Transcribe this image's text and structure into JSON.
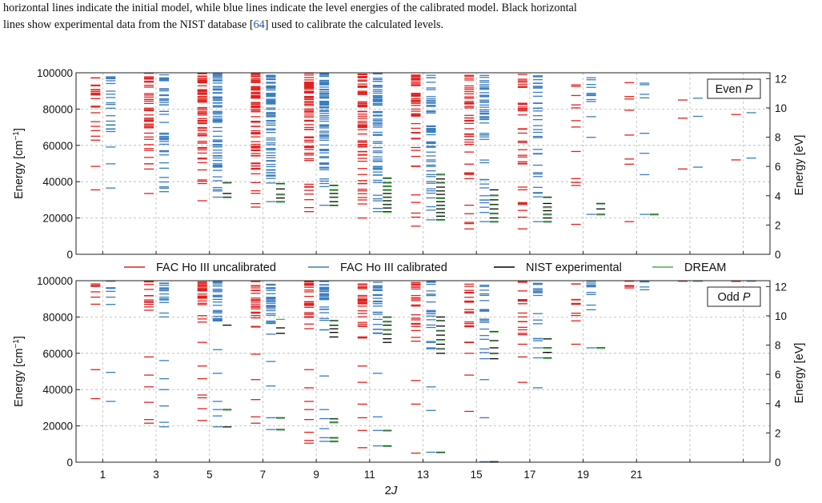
{
  "caption": {
    "line1": "horizontal lines indicate the initial model, while blue lines indicate the level energies of the calibrated model. Black horizontal",
    "line2_before_ref": "lines show experimental data from the NIST database [",
    "ref": "64",
    "line2_after_ref": "] used to calibrate the calculated levels."
  },
  "colors": {
    "uncalibrated": "#e0201f",
    "calibrated": "#3a7cc0",
    "nist": "#000000",
    "dream": "#4caf50",
    "grid": "#b8b8b8"
  },
  "legend": {
    "items": [
      {
        "label": "FAC Ho III uncalibrated",
        "color": "#e0201f"
      },
      {
        "label": "FAC Ho III calibrated",
        "color": "#3a7cc0"
      },
      {
        "label": "NIST experimental",
        "color": "#000000"
      },
      {
        "label": "DREAM",
        "color": "#4caf50"
      }
    ]
  },
  "chart_data": [
    {
      "type": "scatter",
      "panel_label": "Even P",
      "ylabel": "Energy [cm$^{-1}$]",
      "ylabel_display": "Energy [cm",
      "ylabel_sup": "−1",
      "ylabel_close": "]",
      "ylabel_right": "Energy [eV]",
      "ylim": [
        0,
        100000
      ],
      "y_ticks": [
        "0",
        "20000",
        "40000",
        "60000",
        "80000",
        "100000"
      ],
      "y_tick_values": [
        0,
        20000,
        40000,
        60000,
        80000,
        100000
      ],
      "y2lim": [
        0,
        12.4
      ],
      "y2_ticks": [
        "0",
        "2",
        "4",
        "6",
        "8",
        "10",
        "12"
      ],
      "grid": true,
      "x": [
        "1",
        "3",
        "5",
        "7",
        "9",
        "11",
        "13",
        "15",
        "17",
        "19",
        "21",
        "23",
        "25"
      ],
      "series": [
        {
          "name": "FAC Ho III uncalibrated",
          "min": [
            35500,
            33500,
            29500,
            26000,
            23500,
            20000,
            15500,
            14000,
            14000,
            16500,
            18000,
            47000,
            52000
          ],
          "density": [
            22,
            45,
            70,
            75,
            75,
            70,
            50,
            45,
            35,
            12,
            8,
            3,
            2
          ]
        },
        {
          "name": "FAC Ho III calibrated",
          "min": [
            36500,
            34500,
            31500,
            29000,
            27000,
            23500,
            19000,
            18000,
            18000,
            22000,
            22000,
            48000,
            53000
          ],
          "density": [
            22,
            45,
            70,
            75,
            75,
            70,
            50,
            45,
            35,
            12,
            8,
            3,
            2
          ]
        },
        {
          "name": "NIST experimental",
          "values": [
            [],
            [],
            [
              31500,
              33500,
              39500
            ],
            [
              29000,
              31000,
              33000,
              36000,
              39000
            ],
            [
              27000,
              29000,
              31500,
              33500,
              35500,
              38000
            ],
            [
              23500,
              25500,
              27500,
              29500,
              31500,
              33500,
              35500,
              37500,
              39500,
              42000
            ],
            [
              19000,
              21000,
              23000,
              25000,
              27000,
              29000,
              31000,
              33000,
              35000,
              37000,
              39500,
              41500,
              44000
            ],
            [
              18000,
              20000,
              22500,
              25000,
              27500,
              30000,
              32500,
              35500
            ],
            [
              18000,
              20000,
              22000,
              24000,
              26000,
              28000,
              31500
            ],
            [
              22000,
              25000,
              28000
            ],
            [
              22000
            ],
            [],
            []
          ]
        },
        {
          "name": "DREAM",
          "values": [
            [],
            [],
            [
              31500,
              39500
            ],
            [
              29000,
              33000,
              39000
            ],
            [
              27000,
              31500,
              35500,
              38000
            ],
            [
              23500,
              27500,
              31500,
              35500,
              37500,
              39500,
              42000
            ],
            [
              19000,
              23000,
              27000,
              31000,
              35000,
              39500,
              44000
            ],
            [
              18000,
              22500,
              27500,
              32500
            ],
            [
              18000,
              22000,
              26000,
              31500
            ],
            [
              22000,
              28000
            ],
            [
              22000
            ],
            [],
            []
          ]
        }
      ]
    },
    {
      "type": "scatter",
      "panel_label": "Odd P",
      "xlabel": "2J",
      "ylabel": "Energy [cm$^{-1}$]",
      "ylabel_display": "Energy [cm",
      "ylabel_sup": "−1",
      "ylabel_close": "]",
      "ylabel_right": "Energy [eV]",
      "ylim": [
        0,
        100000
      ],
      "y_ticks": [
        "0",
        "20000",
        "40000",
        "60000",
        "80000",
        "100000"
      ],
      "y_tick_values": [
        0,
        20000,
        40000,
        60000,
        80000,
        100000
      ],
      "y2lim": [
        0,
        12.4
      ],
      "y2_ticks": [
        "0",
        "2",
        "4",
        "6",
        "8",
        "10",
        "12"
      ],
      "grid": true,
      "x": [
        "1",
        "3",
        "5",
        "7",
        "9",
        "11",
        "13",
        "15",
        "17",
        "19",
        "21",
        "23",
        "25"
      ],
      "x_tick_labels": [
        "1",
        "3",
        "5",
        "7",
        "9",
        "11",
        "13",
        "15",
        "17",
        "19",
        "21"
      ],
      "series": [
        {
          "name": "FAC Ho III uncalibrated",
          "low": [
            [
              35000,
              51000
            ],
            [
              21500,
              23500,
              33000,
              41500,
              48000,
              58000
            ],
            [
              23000,
              29500,
              35500,
              37000,
              46000,
              53000,
              66000
            ],
            [
              21500,
              25000,
              34500,
              45500,
              59500
            ],
            [
              10500,
              12000,
              16500,
              23500,
              29000,
              33500,
              41000,
              51000
            ],
            [
              8000,
              17500,
              24500,
              32000,
              44000,
              53000
            ],
            [
              5000,
              32000,
              45000
            ],
            [
              28000,
              48000,
              60000
            ],
            [
              44000,
              58000,
              65000,
              71000
            ],
            [
              65000,
              87000
            ],
            [
              96000
            ]
          ],
          "dense_from": [
            87000,
            82000,
            76000,
            72000,
            70000,
            67000,
            64000,
            63000,
            62000,
            77000,
            96000,
            99000,
            99000
          ],
          "density": [
            6,
            14,
            25,
            28,
            28,
            26,
            22,
            18,
            14,
            8,
            3,
            1,
            1
          ]
        },
        {
          "name": "FAC Ho III calibrated",
          "low": [
            [
              33500,
              49500
            ],
            [
              19500,
              22000,
              31000,
              40000,
              46000,
              56000
            ],
            [
              19500,
              25500,
              29000,
              33500,
              49000,
              62000
            ],
            [
              18000,
              24500,
              42000,
              55500
            ],
            [
              11500,
              13500,
              18500,
              24000,
              29000,
              47500
            ],
            [
              9000,
              17500,
              25000,
              49000
            ],
            [
              5500,
              28500,
              41500
            ],
            [
              300,
              24500,
              45500,
              57000
            ],
            [
              41000,
              57500,
              63000,
              68000
            ],
            [
              63000,
              84000
            ],
            [
              95000
            ]
          ],
          "dense_from": [
            86000,
            80000,
            75500,
            70000,
            68000,
            64000,
            62000,
            60000,
            60000,
            75000,
            95000,
            99500,
            99500
          ],
          "density": [
            6,
            14,
            25,
            28,
            28,
            26,
            22,
            18,
            14,
            8,
            3,
            1,
            1
          ]
        },
        {
          "name": "NIST experimental",
          "values": [
            [],
            [],
            [
              19500,
              29000,
              75500
            ],
            [
              18000,
              24500,
              71000,
              74000
            ],
            [
              11500,
              13500,
              22000,
              24000,
              69000,
              71500,
              73500,
              75500,
              78000
            ],
            [
              9000,
              17500,
              66000,
              68000,
              70500,
              73000,
              75500,
              77500,
              80000
            ],
            [
              5500,
              60000,
              62500,
              65000,
              67500,
              70000,
              72500,
              75000,
              78000,
              80000
            ],
            [
              300,
              57000,
              60000,
              63000,
              67000,
              72000
            ],
            [
              57500,
              60500,
              63000,
              68000
            ],
            [
              63000
            ],
            [],
            [],
            []
          ]
        },
        {
          "name": "DREAM",
          "values": [
            [],
            [],
            [
              19500,
              29000
            ],
            [
              18000,
              24500,
              79000
            ],
            [
              11500,
              13500,
              22000,
              24000,
              75500,
              78000
            ],
            [
              9000,
              17500,
              73000,
              77500,
              80000
            ],
            [
              5500,
              62500,
              67500,
              72500,
              78000
            ],
            [
              300,
              60000,
              67000,
              72000
            ],
            [
              57500,
              63000,
              68000
            ],
            [
              63000
            ],
            [],
            [],
            []
          ]
        }
      ]
    }
  ]
}
